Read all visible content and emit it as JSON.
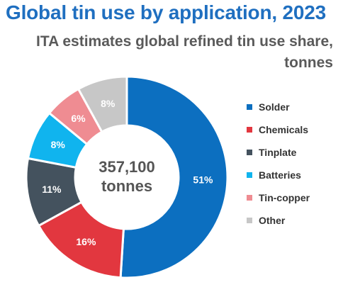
{
  "chart_data": {
    "type": "pie",
    "title": "Global tin use by application, 2023",
    "subtitle": "ITA estimates global refined tin use share, tonnes",
    "center_value": "357,100",
    "center_unit": "tonnes",
    "legend_position": "right",
    "slices": [
      {
        "label": "Solder",
        "value": 51,
        "display": "51%",
        "color": "#0c6fc0"
      },
      {
        "label": "Chemicals",
        "value": 16,
        "display": "16%",
        "color": "#e2373f"
      },
      {
        "label": "Tinplate",
        "value": 11,
        "display": "11%",
        "color": "#44525e"
      },
      {
        "label": "Batteries",
        "value": 8,
        "display": "8%",
        "color": "#10b4ee"
      },
      {
        "label": "Tin-copper",
        "value": 6,
        "display": "6%",
        "color": "#ef8c92"
      },
      {
        "label": "Other",
        "value": 8,
        "display": "8%",
        "color": "#c7c7c7"
      }
    ]
  }
}
